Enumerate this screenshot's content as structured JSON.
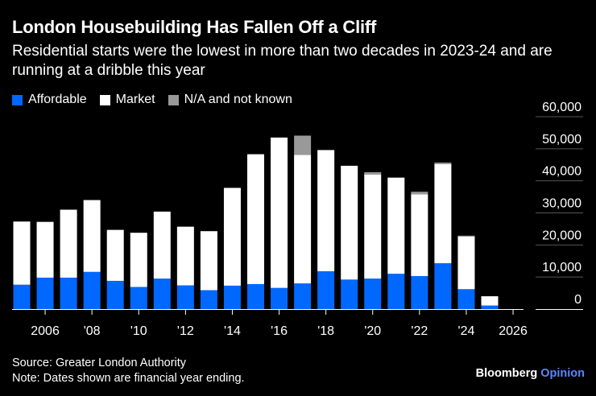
{
  "chart_data": {
    "type": "bar",
    "stacked": true,
    "title": "London Housebuilding Has Fallen Off a Cliff",
    "subtitle": "Residential starts were the lowest in more than two decades in 2023-24 and are running at a dribble this year",
    "x": [
      2005,
      2006,
      2007,
      2008,
      2009,
      2010,
      2011,
      2012,
      2013,
      2014,
      2015,
      2016,
      2017,
      2018,
      2019,
      2020,
      2021,
      2022,
      2023,
      2024,
      2025,
      2026
    ],
    "series": [
      {
        "name": "Affordable",
        "color": "#0068ff",
        "values": [
          7600,
          9800,
          9800,
          11600,
          8800,
          6900,
          9500,
          7400,
          5900,
          7300,
          7800,
          6600,
          8000,
          11800,
          9200,
          9500,
          11000,
          10300,
          14300,
          6200,
          1100,
          0
        ]
      },
      {
        "name": "Market",
        "color": "#ffffff",
        "values": [
          19700,
          17400,
          21200,
          22400,
          15900,
          16900,
          20900,
          18300,
          18400,
          30500,
          40500,
          46900,
          40100,
          37800,
          35500,
          32500,
          30000,
          25500,
          30900,
          16400,
          2900,
          0
        ]
      },
      {
        "name": "N/A and not known",
        "color": "#999999",
        "values": [
          0,
          0,
          0,
          0,
          0,
          0,
          0,
          0,
          0,
          0,
          0,
          0,
          6000,
          0,
          0,
          700,
          0,
          800,
          500,
          300,
          0,
          0
        ]
      }
    ],
    "yaxis": {
      "min": 0,
      "max": 60000,
      "ticks": [
        0,
        10000,
        20000,
        30000,
        40000,
        50000,
        60000
      ],
      "tick_labels": [
        "0",
        "10,000",
        "20,000",
        "30,000",
        "40,000",
        "50,000",
        "60,000"
      ],
      "position": "right"
    },
    "xaxis": {
      "ticks": [
        2006,
        2008,
        2010,
        2012,
        2014,
        2016,
        2018,
        2020,
        2022,
        2024,
        2026
      ],
      "tick_labels": [
        "2006",
        "'08",
        "'10",
        "'12",
        "'14",
        "'16",
        "'18",
        "'20",
        "'22",
        "'24",
        "2026"
      ]
    },
    "legend": "top-left",
    "source": "Source: Greater London Authority",
    "note": "Note: Dates shown are financial year ending."
  },
  "legend": [
    {
      "label": "Affordable",
      "color": "#0068ff"
    },
    {
      "label": "Market",
      "color": "#ffffff"
    },
    {
      "label": "N/A and not known",
      "color": "#999999"
    }
  ],
  "brand": {
    "name": "Bloomberg",
    "suffix": "Opinion"
  }
}
